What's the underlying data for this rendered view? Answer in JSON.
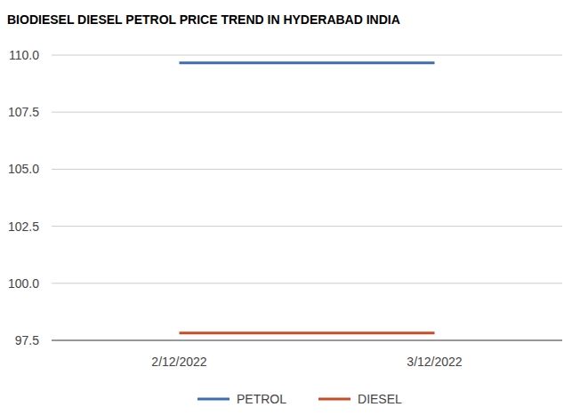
{
  "chart_data": {
    "type": "line",
    "title": "BIODIESEL DIESEL PETROL PRICE TREND IN HYDERABAD INDIA",
    "categories": [
      "2/12/2022",
      "3/12/2022"
    ],
    "series": [
      {
        "name": "PETROL",
        "color": "#3d6db4",
        "values": [
          109.66,
          109.66
        ]
      },
      {
        "name": "DIESEL",
        "color": "#cc4b25",
        "values": [
          97.82,
          97.82
        ]
      }
    ],
    "ylim": [
      97.5,
      110
    ],
    "yticks": [
      97.5,
      {
        "value": 100,
        "label": "100.0"
      },
      102.5,
      {
        "value": 105,
        "label": "105.0"
      },
      107.5,
      {
        "value": 110,
        "label": "110.0"
      }
    ],
    "grid": true,
    "legend": "bottom"
  }
}
